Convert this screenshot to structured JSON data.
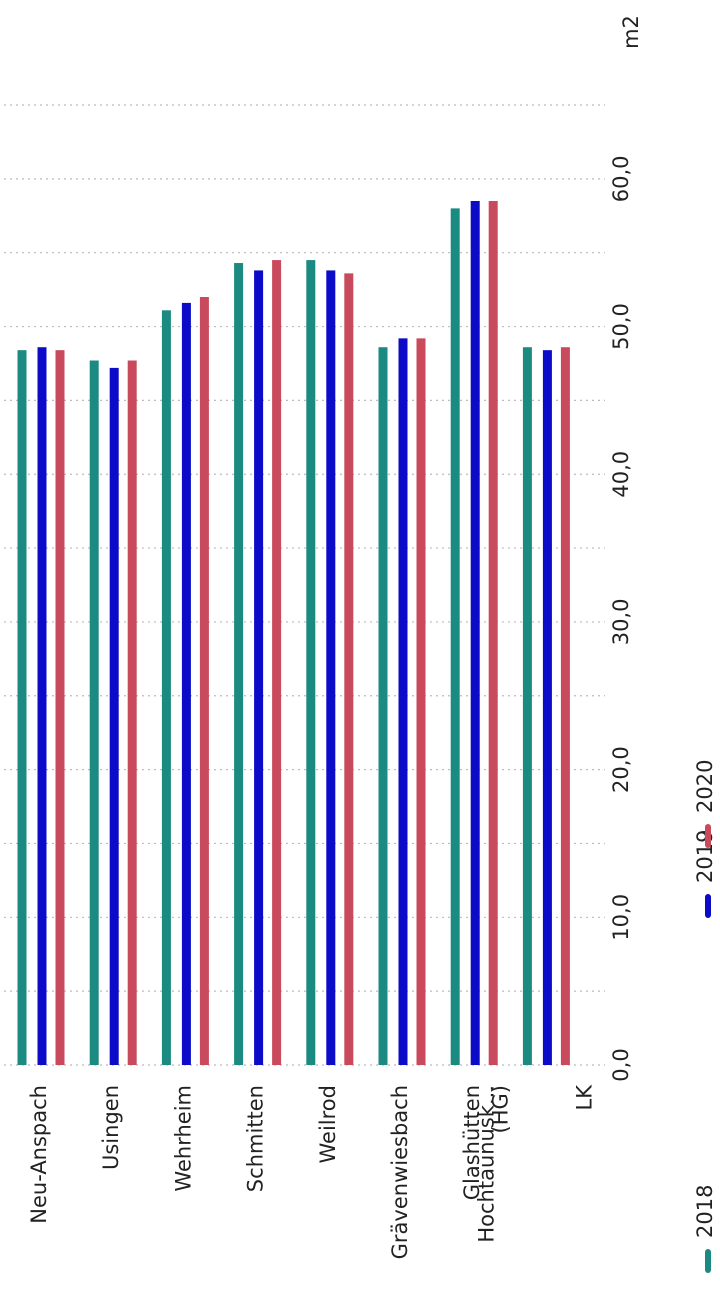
{
  "chart_data": {
    "type": "bar",
    "unit": "m2",
    "categories": [
      "Neu-Anspach",
      "Usingen",
      "Wehrheim",
      "Schmitten",
      "Weilrod",
      "Grävenwiesbach",
      "Glashütten",
      [
        "Hochtaunusk...",
        "(HG)",
        "LK"
      ]
    ],
    "series": [
      {
        "name": "2018",
        "color": "#1b8a80",
        "values": [
          48.4,
          47.7,
          51.1,
          54.3,
          54.5,
          48.6,
          58.0,
          48.6
        ]
      },
      {
        "name": "2019",
        "color": "#0b0bc8",
        "values": [
          48.6,
          47.2,
          51.6,
          53.8,
          53.8,
          49.2,
          58.5,
          48.4
        ]
      },
      {
        "name": "2020",
        "color": "#c94a5c",
        "values": [
          48.4,
          47.7,
          52.0,
          54.5,
          53.6,
          49.2,
          58.5,
          48.6
        ]
      }
    ],
    "ylim": [
      0,
      65
    ],
    "yticks": [
      {
        "value": 0,
        "label": "0,0"
      },
      {
        "value": 10,
        "label": "10,0"
      },
      {
        "value": 20,
        "label": "20,0"
      },
      {
        "value": 30,
        "label": "30,0"
      },
      {
        "value": 40,
        "label": "40,0"
      },
      {
        "value": 50,
        "label": "50,0"
      },
      {
        "value": 60,
        "label": "60,0"
      }
    ],
    "yminorticks": [
      5,
      15,
      25,
      35,
      45,
      55,
      65
    ],
    "grid": true
  }
}
